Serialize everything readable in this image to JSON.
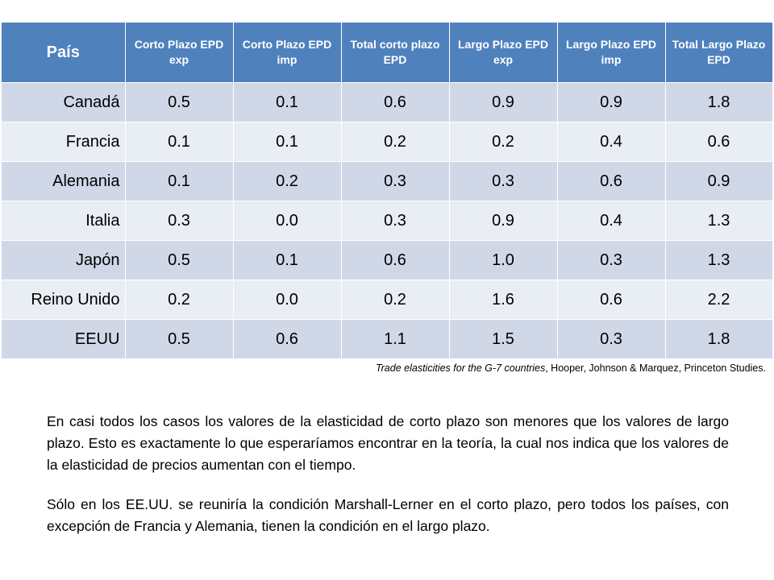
{
  "table": {
    "headers": [
      "País",
      "Corto Plazo EPD exp",
      "Corto Plazo EPD imp",
      "Total corto plazo EPD",
      "Largo Plazo EPD exp",
      "Largo Plazo EPD imp",
      "Total Largo Plazo EPD"
    ],
    "rows": [
      [
        "Canadá",
        "0.5",
        "0.1",
        "0.6",
        "0.9",
        "0.9",
        "1.8"
      ],
      [
        "Francia",
        "0.1",
        "0.1",
        "0.2",
        "0.2",
        "0.4",
        "0.6"
      ],
      [
        "Alemania",
        "0.1",
        "0.2",
        "0.3",
        "0.3",
        "0.6",
        "0.9"
      ],
      [
        "Italia",
        "0.3",
        "0.0",
        "0.3",
        "0.9",
        "0.4",
        "1.3"
      ],
      [
        "Japón",
        "0.5",
        "0.1",
        "0.6",
        "1.0",
        "0.3",
        "1.3"
      ],
      [
        "Reino Unido",
        "0.2",
        "0.0",
        "0.2",
        "1.6",
        "0.6",
        "2.2"
      ],
      [
        "EEUU",
        "0.5",
        "0.6",
        "1.1",
        "1.5",
        "0.3",
        "1.8"
      ]
    ]
  },
  "citation": {
    "title": "Trade elasticities for the G-7 countries",
    "rest": ", Hooper, Johnson & Marquez, Princeton Studies."
  },
  "paragraphs": [
    "En casi todos los casos los valores de la elasticidad de corto plazo son menores que los valores de largo plazo. Esto es exactamente lo que esperaríamos encontrar en la teoría, la cual nos indica que los valores de la elasticidad de precios aumentan con el tiempo.",
    "Sólo en los EE.UU. se reuniría la condición Marshall-Lerner en el corto plazo, pero todos los países, con excepción de Francia y Alemania, tienen la condición en el largo plazo."
  ],
  "colors": {
    "header_bg": "#4f81bd",
    "row_odd": "#d0d8e8",
    "row_even": "#e9edf4"
  }
}
